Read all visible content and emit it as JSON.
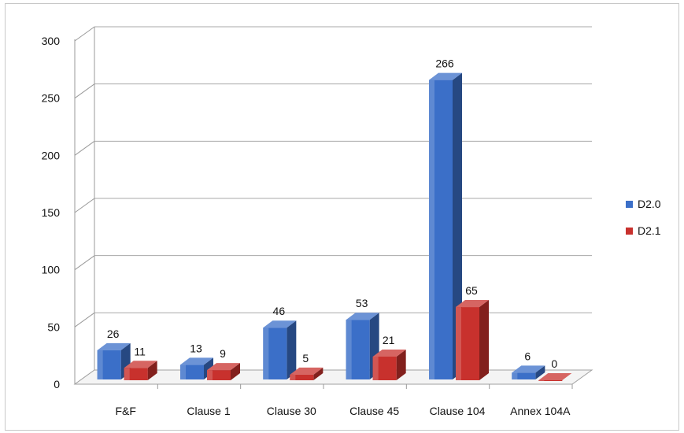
{
  "chart_data": {
    "type": "bar",
    "categories": [
      "F&F",
      "Clause 1",
      "Clause 30",
      "Clause 45",
      "Clause 104",
      "Annex 104A"
    ],
    "series": [
      {
        "name": "D2.0",
        "values": [
          26,
          13,
          46,
          53,
          266,
          6
        ],
        "color": "#3b6fc8"
      },
      {
        "name": "D2.1",
        "values": [
          11,
          9,
          5,
          21,
          65,
          0
        ],
        "color": "#c8312d"
      }
    ],
    "yticks": [
      0,
      50,
      100,
      150,
      200,
      250,
      300
    ],
    "ylim": [
      0,
      300
    ],
    "grid": true,
    "legend_position": "right",
    "style": "3d-clustered-column"
  }
}
